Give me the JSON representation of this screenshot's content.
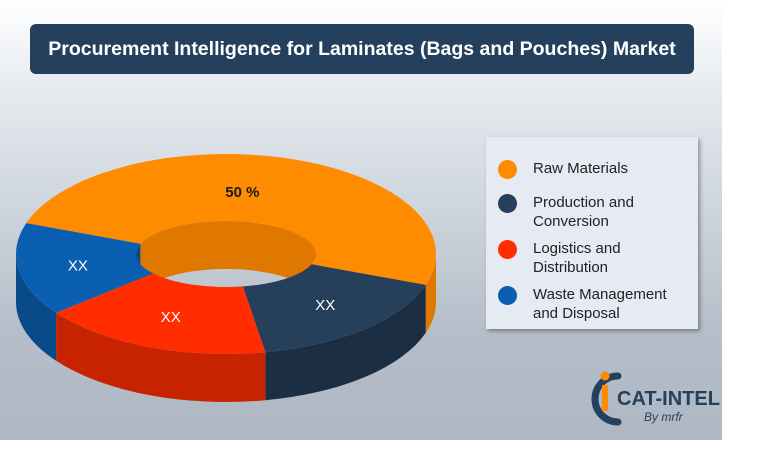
{
  "title": "Procurement Intelligence for Laminates (Bags and Pouches) Market",
  "chart_data": {
    "type": "pie",
    "style": "3d-donut",
    "legend_position": "right",
    "slices": [
      {
        "label": "Raw Materials",
        "value": 50,
        "display": "50 %",
        "color": "#ff8c00",
        "side_color": "#e07800"
      },
      {
        "label": "Production and\nConversion",
        "value": null,
        "display": "XX",
        "color": "#26405c",
        "side_color": "#1b2e44"
      },
      {
        "label": "Logistics and\nDistribution",
        "value": null,
        "display": "XX",
        "color": "#ff2d00",
        "side_color": "#c82300"
      },
      {
        "label": "Waste Management\nand Disposal",
        "value": null,
        "display": "XX",
        "color": "#0b5fb0",
        "side_color": "#084a8a"
      }
    ]
  },
  "logo": {
    "brand": "CAT-INTEL",
    "sub": "By mrfr",
    "colors": [
      "#ff8c00",
      "#24405c"
    ]
  }
}
